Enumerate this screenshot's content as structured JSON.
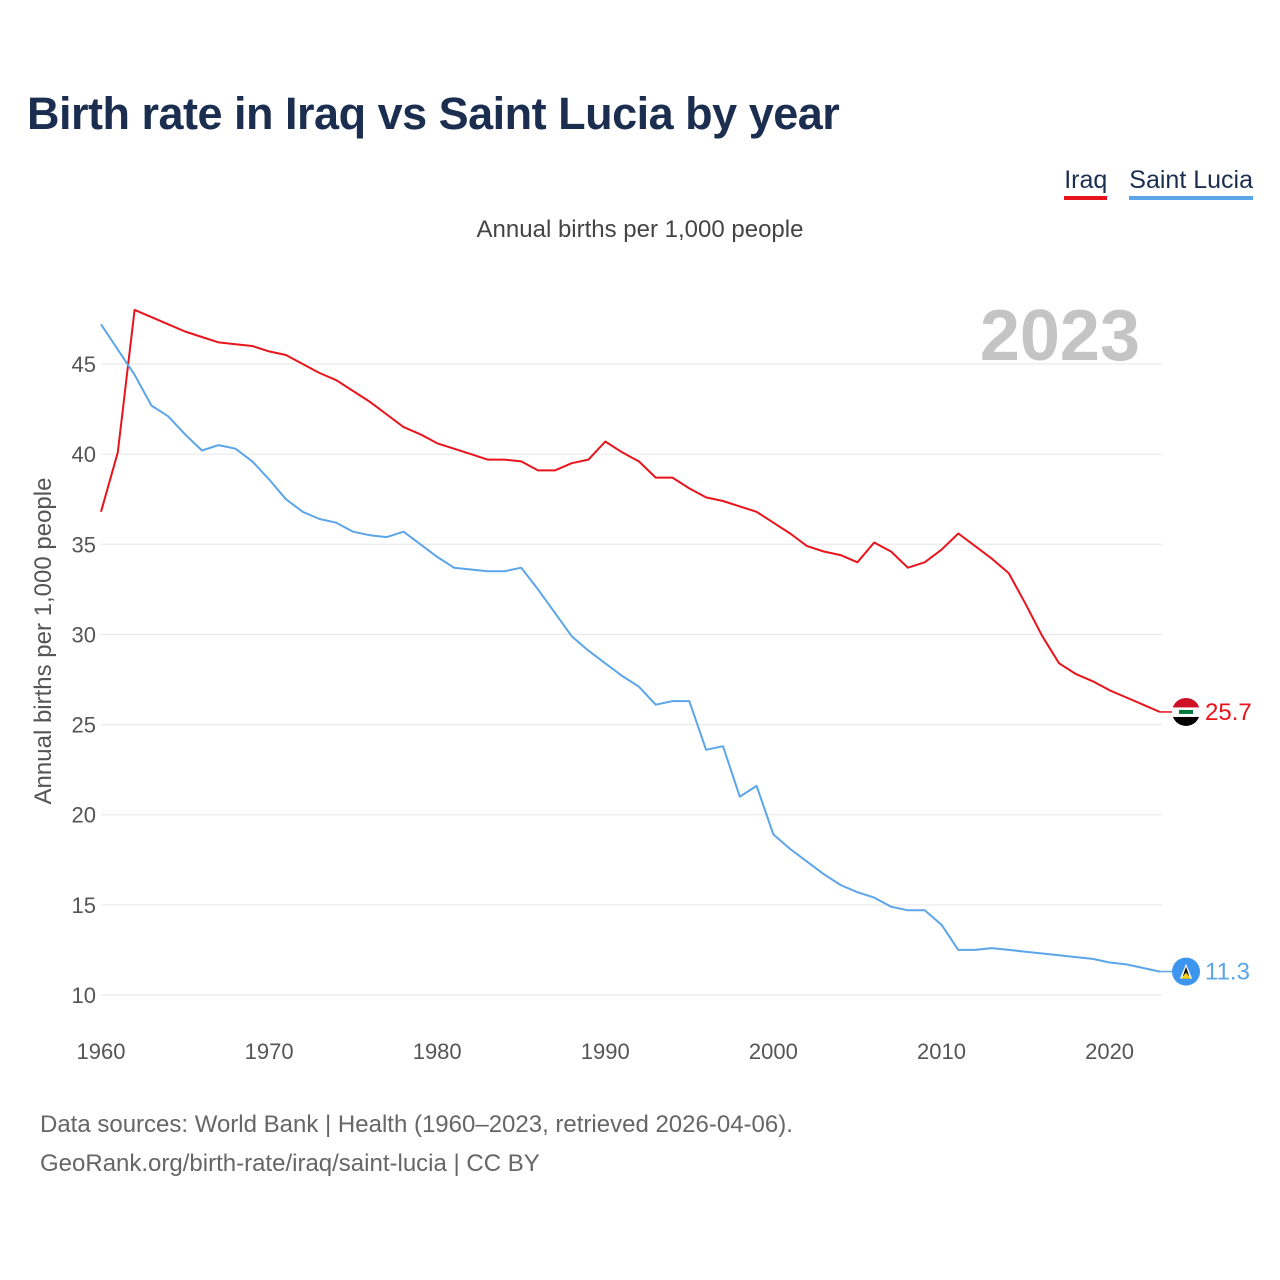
{
  "title": "Birth rate in Iraq vs Saint Lucia by year",
  "subtitle": "Annual births per 1,000 people",
  "legend": [
    {
      "label": "Iraq",
      "color": "#e8141c"
    },
    {
      "label": "Saint Lucia",
      "color": "#5ba5e8"
    }
  ],
  "footer": {
    "line1": "Data sources: World Bank | Health (1960–2023, retrieved 2026-04-06).",
    "line2": "GeoRank.org/birth-rate/iraq/saint-lucia | CC BY"
  },
  "chart_data": {
    "type": "line",
    "title": "Birth rate in Iraq vs Saint Lucia by year",
    "ylabel": "Annual births per 1,000 people",
    "xlabel": "",
    "year_label": "2023",
    "xlim": [
      1960,
      2023
    ],
    "ylim": [
      10,
      48
    ],
    "xticks": [
      1960,
      1970,
      1980,
      1990,
      2000,
      2010,
      2020
    ],
    "yticks": [
      10,
      15,
      20,
      25,
      30,
      35,
      40,
      45
    ],
    "grid": true,
    "x": [
      1960,
      1961,
      1962,
      1963,
      1964,
      1965,
      1966,
      1967,
      1968,
      1969,
      1970,
      1971,
      1972,
      1973,
      1974,
      1975,
      1976,
      1977,
      1978,
      1979,
      1980,
      1981,
      1982,
      1983,
      1984,
      1985,
      1986,
      1987,
      1988,
      1989,
      1990,
      1991,
      1992,
      1993,
      1994,
      1995,
      1996,
      1997,
      1998,
      1999,
      2000,
      2001,
      2002,
      2003,
      2004,
      2005,
      2006,
      2007,
      2008,
      2009,
      2010,
      2011,
      2012,
      2013,
      2014,
      2015,
      2016,
      2017,
      2018,
      2019,
      2020,
      2021,
      2022,
      2023
    ],
    "series": [
      {
        "name": "Iraq",
        "color": "#e8141c",
        "end_label": "25.7",
        "values": [
          36.8,
          40.1,
          48.0,
          47.6,
          47.2,
          46.8,
          46.5,
          46.2,
          46.1,
          46.0,
          45.7,
          45.5,
          45.0,
          44.5,
          44.1,
          43.5,
          42.9,
          42.2,
          41.5,
          41.1,
          40.6,
          40.3,
          40.0,
          39.7,
          39.7,
          39.6,
          39.1,
          39.1,
          39.5,
          39.7,
          40.7,
          40.1,
          39.6,
          38.7,
          38.7,
          38.1,
          37.6,
          37.4,
          37.1,
          36.8,
          36.2,
          35.6,
          34.9,
          34.6,
          34.4,
          34.0,
          35.1,
          34.6,
          33.7,
          34.0,
          34.7,
          35.6,
          34.9,
          34.2,
          33.4,
          31.7,
          29.9,
          28.4,
          27.8,
          27.4,
          26.9,
          26.5,
          26.1,
          25.7
        ]
      },
      {
        "name": "Saint Lucia",
        "color": "#5ba5e8",
        "end_label": "11.3",
        "values": [
          47.2,
          45.8,
          44.4,
          42.7,
          42.1,
          41.1,
          40.2,
          40.5,
          40.3,
          39.6,
          38.6,
          37.5,
          36.8,
          36.4,
          36.2,
          35.7,
          35.5,
          35.4,
          35.7,
          35.0,
          34.3,
          33.7,
          33.6,
          33.5,
          33.5,
          33.7,
          32.5,
          31.2,
          29.9,
          29.1,
          28.4,
          27.7,
          27.1,
          26.1,
          26.3,
          26.3,
          23.6,
          23.8,
          21.0,
          21.6,
          18.9,
          18.1,
          17.4,
          16.7,
          16.1,
          15.7,
          15.4,
          14.9,
          14.7,
          14.7,
          13.9,
          12.5,
          12.5,
          12.6,
          12.5,
          12.4,
          12.3,
          12.2,
          12.1,
          12.0,
          11.8,
          11.7,
          11.5,
          11.3
        ]
      }
    ]
  }
}
